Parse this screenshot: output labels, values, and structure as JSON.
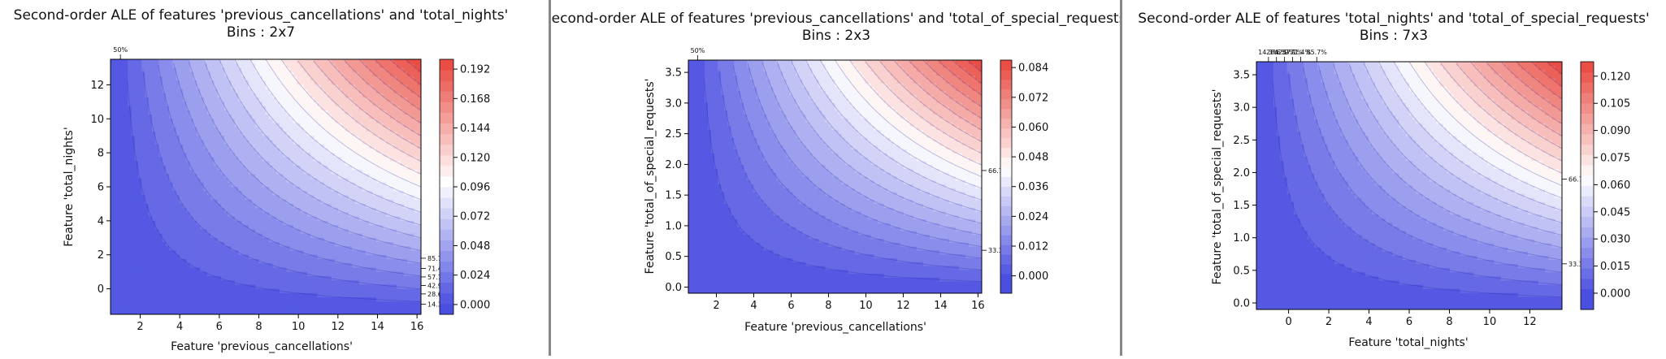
{
  "chart_data": [
    {
      "type": "heatmap",
      "title": "Second-order ALE of features 'previous_cancellations' and 'total_nights'",
      "subtitle": "Bins : 2x7",
      "xlabel": "Feature 'previous_cancellations'",
      "ylabel": "Feature 'total_nights'",
      "xlim": [
        0.5,
        16.2
      ],
      "ylim": [
        -1.5,
        13.5
      ],
      "xticks": [
        "2",
        "4",
        "6",
        "8",
        "10",
        "12",
        "14",
        "16"
      ],
      "xtick_values": [
        2,
        4,
        6,
        8,
        10,
        12,
        14,
        16
      ],
      "yticks": [
        "0",
        "2",
        "4",
        "6",
        "8",
        "10",
        "12"
      ],
      "ytick_values": [
        0,
        2,
        4,
        6,
        8,
        10,
        12
      ],
      "colorbar_ticks": [
        "0.000",
        "0.024",
        "0.048",
        "0.072",
        "0.096",
        "0.120",
        "0.144",
        "0.168",
        "0.192"
      ],
      "colorbar_values": [
        0.0,
        0.024,
        0.048,
        0.072,
        0.096,
        0.12,
        0.144,
        0.168,
        0.192
      ],
      "colorbar_range": [
        -0.008,
        0.2
      ],
      "colormap": [
        "#4b4fe0",
        "#ffffff",
        "#e8453c"
      ],
      "value_range": [
        0.0,
        0.2
      ],
      "top_quantile_labels": [
        "50%"
      ],
      "top_quantile_values": [
        1.0
      ],
      "right_quantile_labels": [
        "85.7%",
        "71.4%",
        "57.1%",
        "42.9%",
        "28.6%",
        "14.3%"
      ],
      "right_quantile_values": [
        1.8,
        1.2,
        0.7,
        0.2,
        -0.3,
        -0.9
      ]
    },
    {
      "type": "heatmap",
      "title": "Second-order ALE of features 'previous_cancellations' and 'total_of_special_requests'",
      "subtitle": "Bins : 2x3",
      "xlabel": "Feature 'previous_cancellations'",
      "ylabel": "Feature 'total_of_special_requests'",
      "xlim": [
        0.5,
        16.2
      ],
      "ylim": [
        -0.1,
        3.7
      ],
      "xticks": [
        "2",
        "4",
        "6",
        "8",
        "10",
        "12",
        "14",
        "16"
      ],
      "xtick_values": [
        2,
        4,
        6,
        8,
        10,
        12,
        14,
        16
      ],
      "yticks": [
        "0.0",
        "0.5",
        "1.0",
        "1.5",
        "2.0",
        "2.5",
        "3.0",
        "3.5"
      ],
      "ytick_values": [
        0.0,
        0.5,
        1.0,
        1.5,
        2.0,
        2.5,
        3.0,
        3.5
      ],
      "colorbar_ticks": [
        "0.000",
        "0.012",
        "0.024",
        "0.036",
        "0.048",
        "0.060",
        "0.072",
        "0.084"
      ],
      "colorbar_values": [
        0.0,
        0.012,
        0.024,
        0.036,
        0.048,
        0.06,
        0.072,
        0.084
      ],
      "colorbar_range": [
        -0.007,
        0.087
      ],
      "colormap": [
        "#4b4fe0",
        "#ffffff",
        "#e8453c"
      ],
      "value_range": [
        0.0,
        0.087
      ],
      "top_quantile_labels": [
        "50%"
      ],
      "top_quantile_values": [
        1.0
      ],
      "right_quantile_labels": [
        "66.7%",
        "33.3%"
      ],
      "right_quantile_values": [
        1.9,
        0.6
      ]
    },
    {
      "type": "heatmap",
      "title": "Second-order ALE of features 'total_nights' and 'total_of_special_requests'",
      "subtitle": "Bins : 7x3",
      "xlabel": "Feature 'total_nights'",
      "ylabel": "Feature 'total_of_special_requests'",
      "xlim": [
        -1.6,
        13.6
      ],
      "ylim": [
        -0.1,
        3.7
      ],
      "xticks": [
        "0",
        "2",
        "4",
        "6",
        "8",
        "10",
        "12"
      ],
      "xtick_values": [
        0,
        2,
        4,
        6,
        8,
        10,
        12
      ],
      "yticks": [
        "0.0",
        "0.5",
        "1.0",
        "1.5",
        "2.0",
        "2.5",
        "3.0",
        "3.5"
      ],
      "ytick_values": [
        0.0,
        0.5,
        1.0,
        1.5,
        2.0,
        2.5,
        3.0,
        3.5
      ],
      "colorbar_ticks": [
        "0.000",
        "0.015",
        "0.030",
        "0.045",
        "0.060",
        "0.075",
        "0.090",
        "0.105",
        "0.120"
      ],
      "colorbar_values": [
        0.0,
        0.015,
        0.03,
        0.045,
        0.06,
        0.075,
        0.09,
        0.105,
        0.12
      ],
      "colorbar_range": [
        -0.009,
        0.128
      ],
      "colormap": [
        "#4b4fe0",
        "#ffffff",
        "#e8453c"
      ],
      "value_range": [
        0.0,
        0.128
      ],
      "top_quantile_labels": [
        "14.3%",
        "28.6%",
        "42.9%",
        "57.1%",
        "71.4%",
        "85.7%"
      ],
      "top_quantile_values": [
        -1.0,
        -0.6,
        -0.2,
        0.2,
        0.6,
        1.4
      ],
      "right_quantile_labels": [
        "66.7%",
        "33.3%"
      ],
      "right_quantile_values": [
        1.9,
        0.6
      ]
    }
  ]
}
